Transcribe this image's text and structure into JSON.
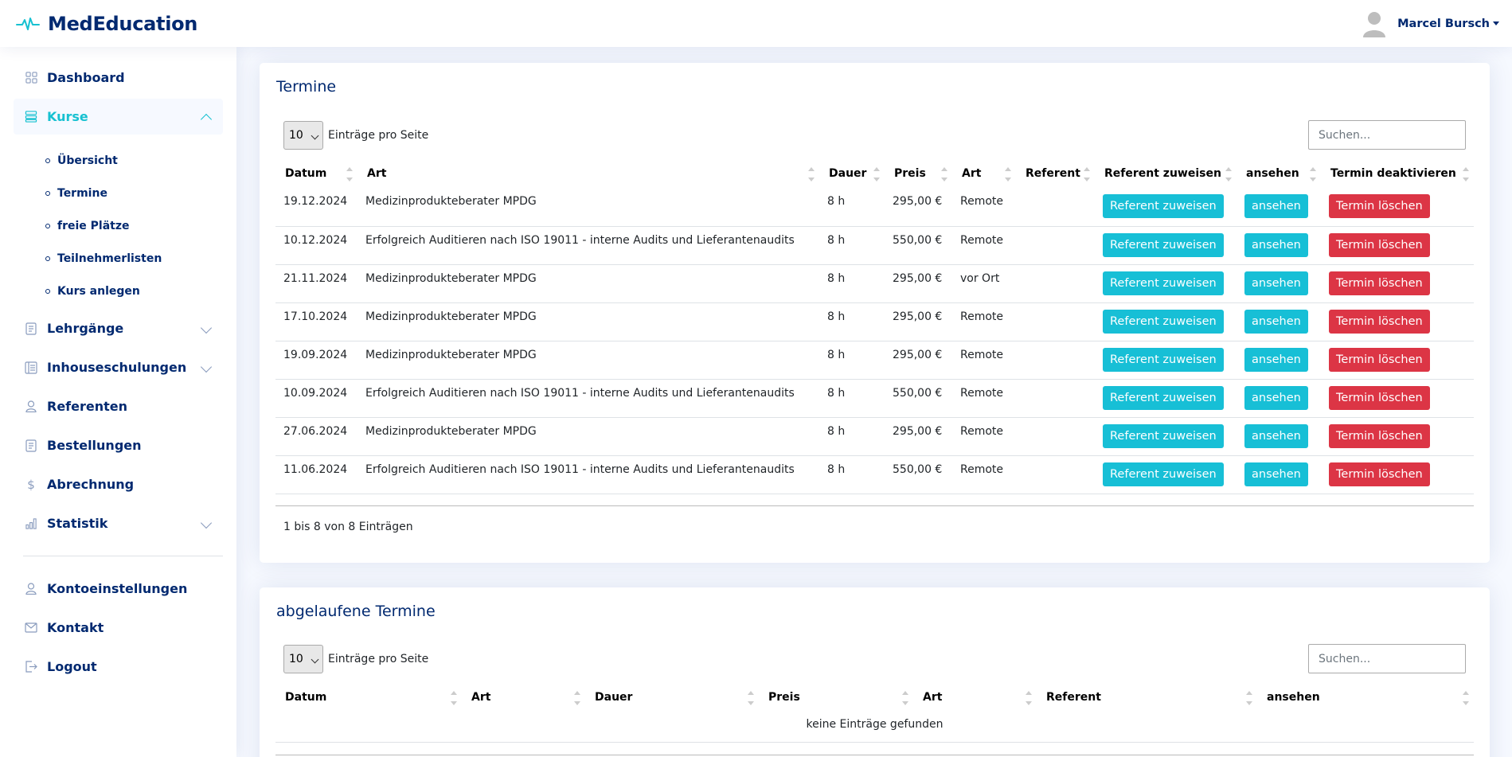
{
  "brand": {
    "name": "MedEducation"
  },
  "user": {
    "name": "Marcel Bursch"
  },
  "sidebar": {
    "items": [
      {
        "label": "Dashboard",
        "icon": "grid-icon"
      },
      {
        "label": "Kurse",
        "icon": "layout-icon",
        "active": true,
        "children": [
          "Übersicht",
          "Termine",
          "freie Plätze",
          "Teilnehmerlisten",
          "Kurs anlegen"
        ]
      },
      {
        "label": "Lehrgänge",
        "icon": "journal-icon"
      },
      {
        "label": "Inhouseschulungen",
        "icon": "layout-text-icon"
      },
      {
        "label": "Referenten",
        "icon": "person-icon"
      },
      {
        "label": "Bestellungen",
        "icon": "receipt-icon"
      },
      {
        "label": "Abrechnung",
        "icon": "dollar-icon"
      },
      {
        "label": "Statistik",
        "icon": "bar-chart-icon"
      }
    ],
    "bottom_items": [
      {
        "label": "Kontoeinstellungen",
        "icon": "person-icon"
      },
      {
        "label": "Kontakt",
        "icon": "envelope-icon"
      },
      {
        "label": "Logout",
        "icon": "logout-icon"
      }
    ]
  },
  "termine": {
    "title": "Termine",
    "length_value": "10",
    "length_label": "Einträge pro Seite",
    "search_placeholder": "Suchen...",
    "columns": [
      "Datum",
      "Art",
      "Dauer",
      "Preis",
      "Art",
      "Referent",
      "Referent zuweisen",
      "ansehen",
      "Termin deaktivieren"
    ],
    "rows": [
      {
        "datum": "19.12.2024",
        "art": "Medizinprodukteberater MPDG",
        "dauer": "8 h",
        "preis": "295,00 €",
        "ort": "Remote",
        "referent": ""
      },
      {
        "datum": "10.12.2024",
        "art": "Erfolgreich Auditieren nach ISO 19011 - interne Audits und Lieferantenaudits",
        "dauer": "8 h",
        "preis": "550,00 €",
        "ort": "Remote",
        "referent": ""
      },
      {
        "datum": "21.11.2024",
        "art": "Medizinprodukteberater MPDG",
        "dauer": "8 h",
        "preis": "295,00 €",
        "ort": "vor Ort",
        "referent": ""
      },
      {
        "datum": "17.10.2024",
        "art": "Medizinprodukteberater MPDG",
        "dauer": "8 h",
        "preis": "295,00 €",
        "ort": "Remote",
        "referent": ""
      },
      {
        "datum": "19.09.2024",
        "art": "Medizinprodukteberater MPDG",
        "dauer": "8 h",
        "preis": "295,00 €",
        "ort": "Remote",
        "referent": ""
      },
      {
        "datum": "10.09.2024",
        "art": "Erfolgreich Auditieren nach ISO 19011 - interne Audits und Lieferantenaudits",
        "dauer": "8 h",
        "preis": "550,00 €",
        "ort": "Remote",
        "referent": ""
      },
      {
        "datum": "27.06.2024",
        "art": "Medizinprodukteberater MPDG",
        "dauer": "8 h",
        "preis": "295,00 €",
        "ort": "Remote",
        "referent": ""
      },
      {
        "datum": "11.06.2024",
        "art": "Erfolgreich Auditieren nach ISO 19011 - interne Audits und Lieferantenaudits",
        "dauer": "8 h",
        "preis": "550,00 €",
        "ort": "Remote",
        "referent": ""
      }
    ],
    "buttons": {
      "assign": "Referent zuweisen",
      "view": "ansehen",
      "delete": "Termin löschen"
    },
    "info": "1 bis 8 von 8 Einträgen"
  },
  "abgelaufene": {
    "title": "abgelaufene Termine",
    "length_value": "10",
    "length_label": "Einträge pro Seite",
    "search_placeholder": "Suchen...",
    "columns": [
      "Datum",
      "Art",
      "Dauer",
      "Preis",
      "Art",
      "Referent",
      "ansehen"
    ],
    "empty": "keine Einträge gefunden"
  },
  "colors": {
    "primary": "#012970",
    "accent": "#17c1d1",
    "info_button": "#17bfd6",
    "danger_button": "#dc3545",
    "background": "#f6f9ff"
  }
}
